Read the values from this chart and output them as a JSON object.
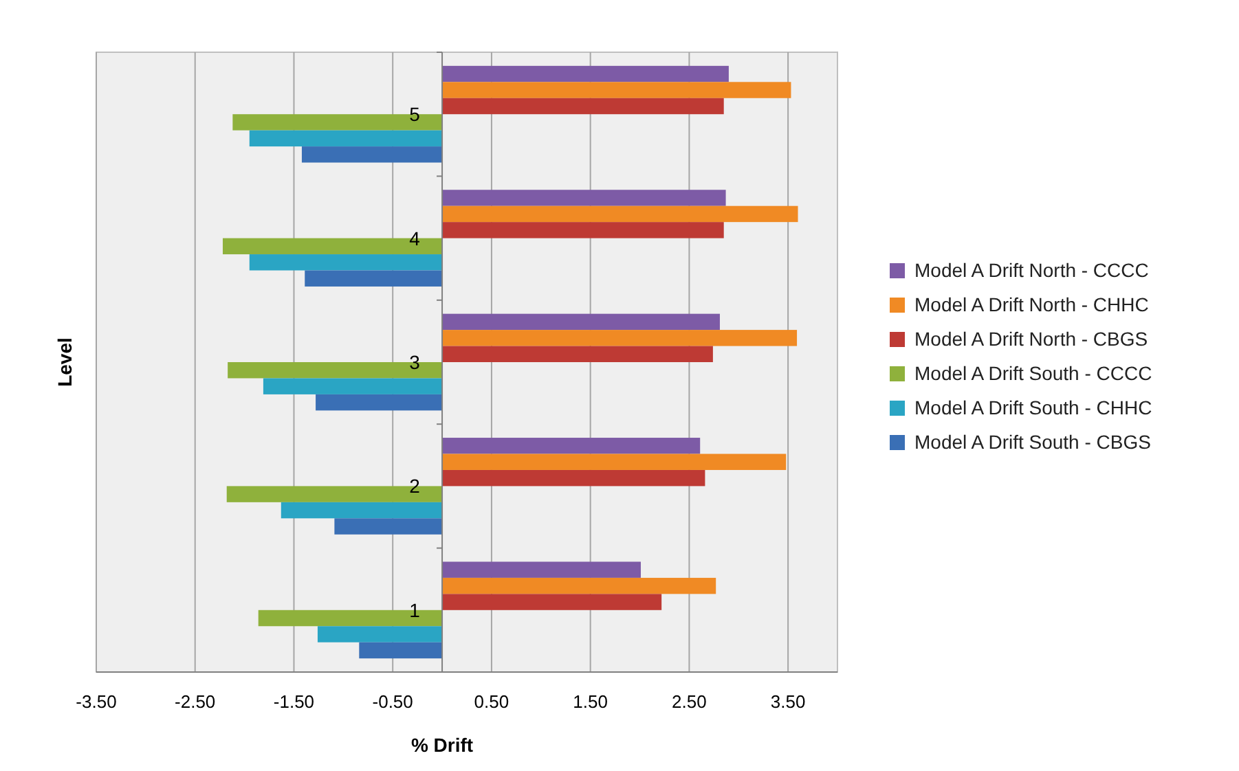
{
  "chart_data": {
    "type": "bar",
    "orientation": "horizontal",
    "xlabel": "% Drift",
    "ylabel": "Level",
    "categories": [
      "5",
      "4",
      "3",
      "2",
      "1"
    ],
    "series": [
      {
        "name": "Model A Drift North - CCCC",
        "color": "#7d5ba6",
        "values": [
          2.9,
          2.87,
          2.81,
          2.61,
          2.01
        ]
      },
      {
        "name": "Model A Drift North - CHHC",
        "color": "#f08a24",
        "values": [
          3.53,
          3.6,
          3.59,
          3.48,
          2.77
        ]
      },
      {
        "name": "Model A Drift North - CBGS",
        "color": "#be3a34",
        "values": [
          2.85,
          2.85,
          2.74,
          2.66,
          2.22
        ]
      },
      {
        "name": "Model A Drift South - CCCC",
        "color": "#8fb13c",
        "values": [
          -2.12,
          -2.22,
          -2.17,
          -2.18,
          -1.86
        ]
      },
      {
        "name": "Model A Drift South - CHHC",
        "color": "#2aa5c4",
        "values": [
          -1.95,
          -1.95,
          -1.81,
          -1.63,
          -1.26
        ]
      },
      {
        "name": "Model A Drift South - CBGS",
        "color": "#3a6fb5",
        "values": [
          -1.42,
          -1.39,
          -1.28,
          -1.09,
          -0.84
        ]
      }
    ],
    "xlim": [
      -3.5,
      4.0
    ],
    "xticks": [
      {
        "value": -3.5,
        "label": "-3.50"
      },
      {
        "value": -2.5,
        "label": "-2.50"
      },
      {
        "value": -1.5,
        "label": "-1.50"
      },
      {
        "value": -0.5,
        "label": "-0.50"
      },
      {
        "value": 0.5,
        "label": "0.50"
      },
      {
        "value": 1.5,
        "label": "1.50"
      },
      {
        "value": 2.5,
        "label": "2.50"
      },
      {
        "value": 3.5,
        "label": "3.50"
      }
    ],
    "grid": "x",
    "legend": "right"
  }
}
